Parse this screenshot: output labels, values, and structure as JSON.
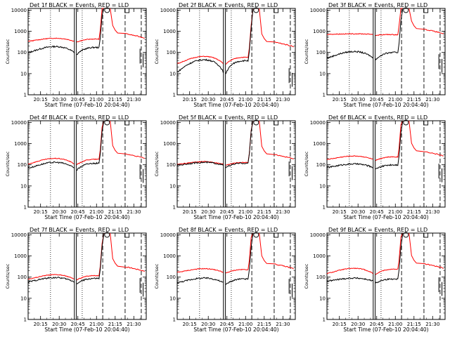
{
  "chart_data": {
    "type": "line",
    "x_tick_labels": [
      "20:15",
      "20:30",
      "20:45",
      "21:00",
      "21:15",
      "21:30"
    ],
    "y_tick_labels": [
      "1",
      "10",
      "100",
      "1000",
      "10000"
    ],
    "ylabel": "Counts/sec",
    "xlabel": "Start Time (07-Feb-10 20:04:40)",
    "ylim": [
      1,
      12000
    ],
    "yscale": "log",
    "colors": {
      "events": "#000000",
      "lld": "#ff0000"
    },
    "panels": [
      {
        "title": "Det 1f BLACK = Events, RED = LLD",
        "events_base": 100,
        "lld_base": 340,
        "events_peak": 190,
        "lld_peak": 470
      },
      {
        "title": "Det 2f BLACK = Events, RED = LLD",
        "events_base": 12,
        "lld_base": 30,
        "events_peak": 45,
        "lld_peak": 65
      },
      {
        "title": "Det 3f BLACK = Events, RED = LLD",
        "events_base": 55,
        "lld_base": 720,
        "events_peak": 110,
        "lld_peak": 760
      },
      {
        "title": "Det 4f BLACK = Events, RED = LLD",
        "events_base": 70,
        "lld_base": 110,
        "events_peak": 130,
        "lld_peak": 200
      },
      {
        "title": "Det 5f BLACK = Events, RED = LLD",
        "events_base": 95,
        "lld_base": 105,
        "events_peak": 130,
        "lld_peak": 140
      },
      {
        "title": "Det 6f BLACK = Events, RED = LLD",
        "events_base": 75,
        "lld_base": 180,
        "events_peak": 110,
        "lld_peak": 260
      },
      {
        "title": "Det 7f BLACK = Events, RED = LLD",
        "events_base": 60,
        "lld_base": 80,
        "events_peak": 95,
        "lld_peak": 130
      },
      {
        "title": "Det 8f BLACK = Events, RED = LLD",
        "events_base": 55,
        "lld_base": 170,
        "events_peak": 90,
        "lld_peak": 250
      },
      {
        "title": "Det 9f BLACK = Events, RED = LLD",
        "events_base": 65,
        "lld_base": 150,
        "events_peak": 90,
        "lld_peak": 260
      }
    ]
  }
}
